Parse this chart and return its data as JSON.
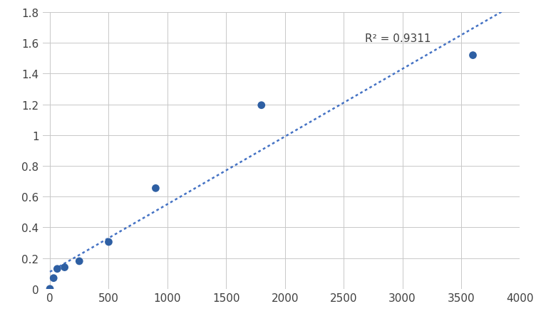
{
  "x": [
    0,
    31.25,
    62.5,
    125,
    250,
    500,
    900,
    1800,
    3600
  ],
  "y": [
    0.0,
    0.07,
    0.13,
    0.14,
    0.18,
    0.305,
    0.655,
    1.195,
    1.52
  ],
  "r_squared_label": "R² = 0.9311",
  "r_squared_x": 2680,
  "r_squared_y": 1.595,
  "dot_color": "#2E5FA3",
  "line_color": "#4472C4",
  "xlim": [
    -60,
    4000
  ],
  "ylim": [
    0,
    1.8
  ],
  "xticks": [
    0,
    500,
    1000,
    1500,
    2000,
    2500,
    3000,
    3500,
    4000
  ],
  "yticks": [
    0,
    0.2,
    0.4,
    0.6,
    0.8,
    1.0,
    1.2,
    1.4,
    1.6,
    1.8
  ],
  "marker_size": 60,
  "line_width": 1.8,
  "grid_color": "#C8C8C8",
  "background_color": "#FFFFFF",
  "tick_label_fontsize": 11,
  "annotation_fontsize": 11
}
